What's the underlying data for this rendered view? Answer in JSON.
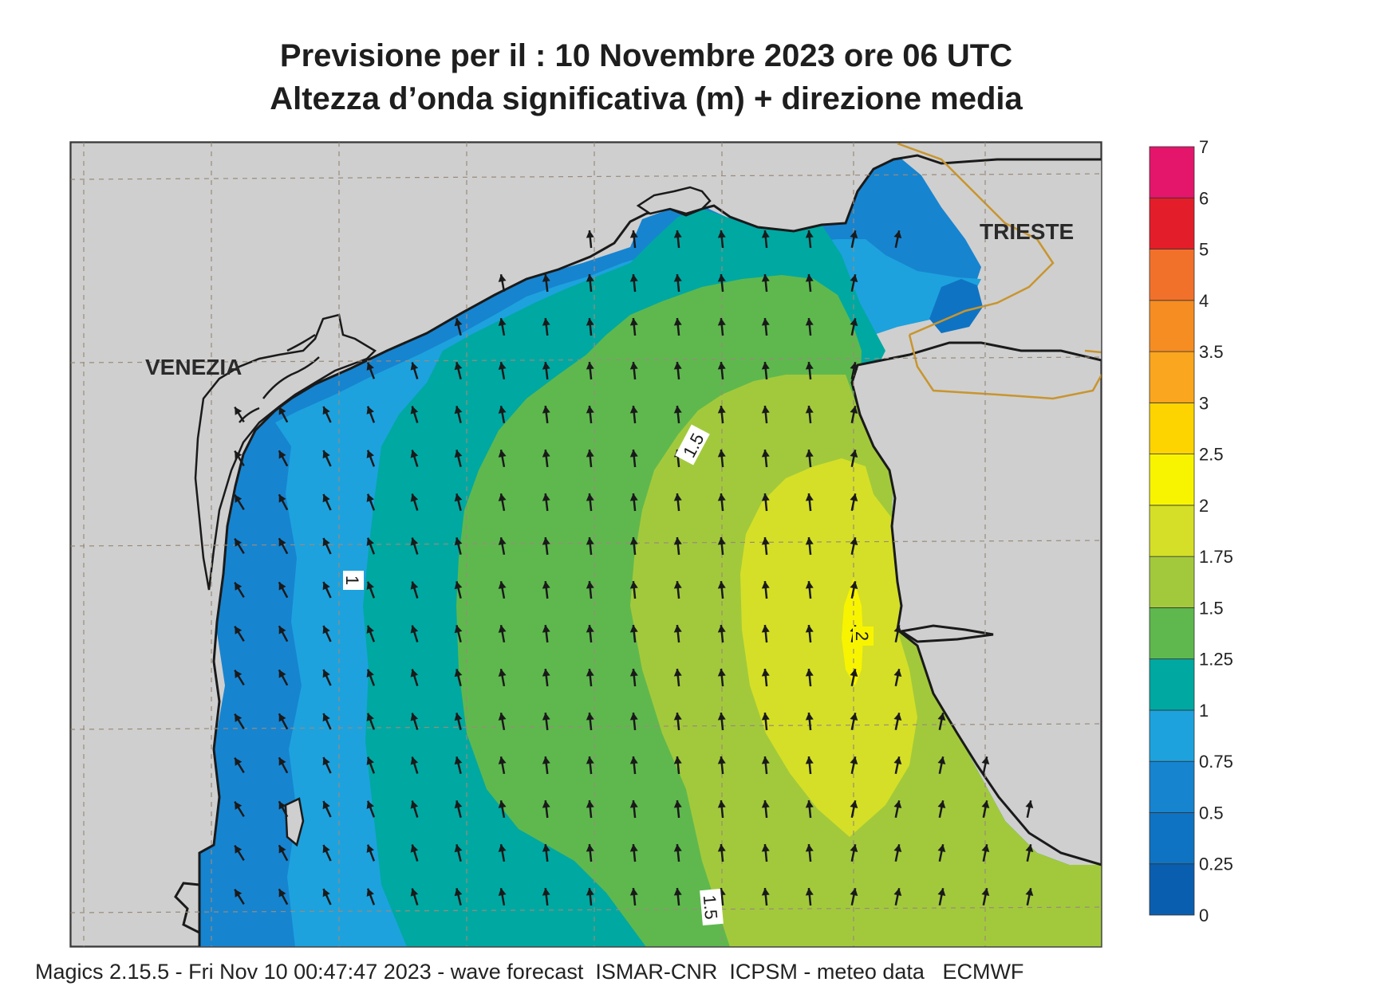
{
  "title": {
    "line1": "Previsione per il  :  10 Novembre  2023   ore 06 UTC",
    "line2": "Altezza d’onda significativa (m) + direzione media"
  },
  "places": [
    {
      "id": "venezia",
      "name": "VENEZIA"
    },
    {
      "id": "trieste",
      "name": "TRIESTE"
    }
  ],
  "contour_labels": [
    {
      "id": "c15a",
      "value": "1.5"
    },
    {
      "id": "c1",
      "value": "1"
    },
    {
      "id": "c2",
      "value": "2"
    },
    {
      "id": "c15b",
      "value": "1.5"
    }
  ],
  "legend": {
    "levels": [
      "0",
      "0.25",
      "0.5",
      "0.75",
      "1",
      "1.25",
      "1.5",
      "1.75",
      "2",
      "2.5",
      "3",
      "3.5",
      "4",
      "5",
      "6",
      "7"
    ],
    "colors": [
      "#0a5eb0",
      "#0f73c3",
      "#1784d0",
      "#1da2de",
      "#00a8a2",
      "#5fb84e",
      "#a2c93c",
      "#d5df27",
      "#f8f400",
      "#fdd400",
      "#faa61e",
      "#f68d22",
      "#f2712a",
      "#e41d2a",
      "#e3166b"
    ]
  },
  "colors": {
    "land": "#cfcfcf",
    "sea_05": "#1784d0",
    "sea_075": "#1da2de",
    "sea_1": "#00a8a2",
    "sea_125": "#5fb84e",
    "sea_15": "#a2c93c",
    "sea_175": "#d5df27",
    "sea_2": "#f8f400",
    "border": "#c8952e"
  },
  "footer": "Magics 2.15.5 - Fri Nov 10 00:47:47 2023 - wave forecast  ISMAR-CNR  ICPSM - meteo data   ECMWF"
}
